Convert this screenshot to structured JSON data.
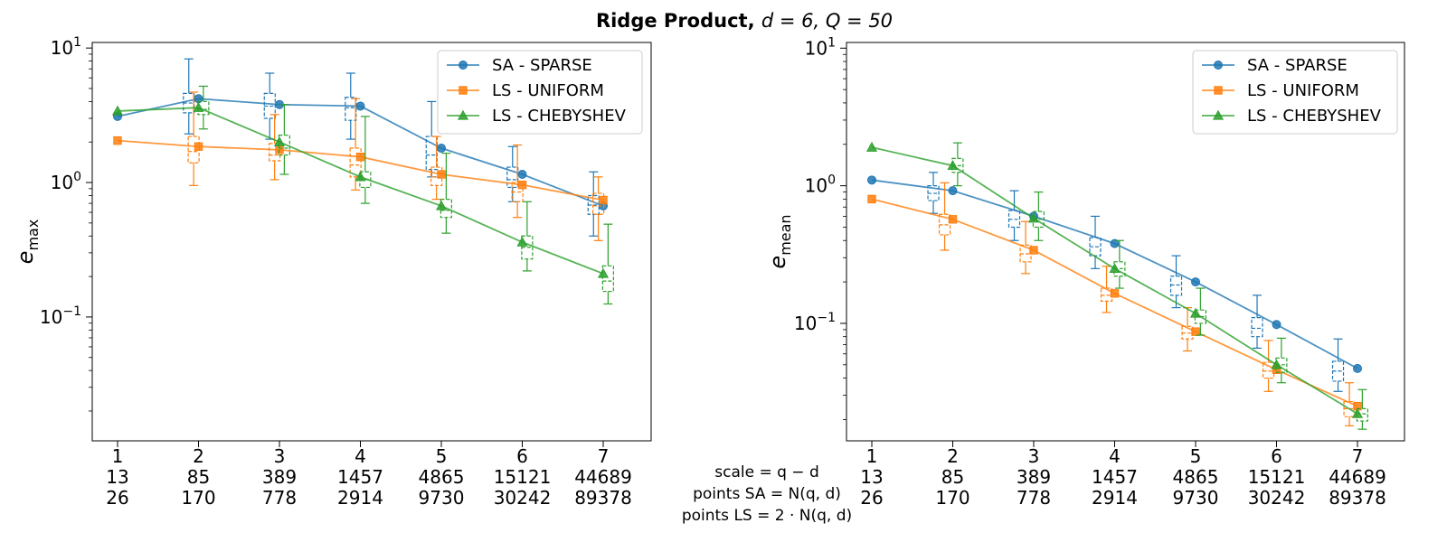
{
  "figure": {
    "title_bold": "Ridge Product, ",
    "title_rest": "d = 6, Q = 50"
  },
  "center_labels": {
    "line1": "scale = q − d",
    "line2": "points SA = N(q, d)",
    "line3": "points LS = 2 · N(q, d)"
  },
  "chart_data": [
    {
      "type": "line",
      "ylabel_main": "e",
      "ylabel_sub": "max",
      "yscale": "log",
      "ylim": [
        0.012,
        11
      ],
      "yticks": [
        {
          "value": 10,
          "base": "10",
          "exp": "1"
        },
        {
          "value": 1,
          "base": "10",
          "exp": "0"
        },
        {
          "value": 0.1,
          "base": "10",
          "exp": "−1"
        }
      ],
      "x": [
        1,
        2,
        3,
        4,
        5,
        6,
        7
      ],
      "xtick_rows": [
        [
          "1",
          "2",
          "3",
          "4",
          "5",
          "6",
          "7"
        ],
        [
          "13",
          "85",
          "389",
          "1457",
          "4865",
          "15121",
          "44689"
        ],
        [
          "26",
          "170",
          "778",
          "2914",
          "9730",
          "30242",
          "89378"
        ]
      ],
      "legend": {
        "position": "upper-right"
      },
      "series": [
        {
          "name": "SA - SPARSE",
          "color": "#1f77b4",
          "marker": "circle",
          "values": [
            3.1,
            4.2,
            3.8,
            3.7,
            1.8,
            1.15,
            0.67
          ],
          "box_offset": -0.12,
          "boxes": [
            null,
            {
              "lo": 2.3,
              "q1": 3.3,
              "med": 3.9,
              "q3": 4.6,
              "hi": 8.3
            },
            {
              "lo": 2.1,
              "q1": 3.0,
              "med": 3.7,
              "q3": 4.6,
              "hi": 6.5
            },
            {
              "lo": 2.1,
              "q1": 2.9,
              "med": 3.6,
              "q3": 4.3,
              "hi": 6.5
            },
            {
              "lo": 1.1,
              "q1": 1.25,
              "med": 1.6,
              "q3": 2.2,
              "hi": 4.0
            },
            {
              "lo": 0.72,
              "q1": 0.92,
              "med": 1.05,
              "q3": 1.3,
              "hi": 1.85
            },
            {
              "lo": 0.4,
              "q1": 0.58,
              "med": 0.68,
              "q3": 0.8,
              "hi": 1.2
            }
          ]
        },
        {
          "name": "LS - UNIFORM",
          "color": "#ff7f0e",
          "marker": "square",
          "values": [
            2.05,
            1.85,
            1.75,
            1.55,
            1.15,
            0.96,
            0.74
          ],
          "box_offset": -0.06,
          "boxes": [
            null,
            {
              "lo": 0.95,
              "q1": 1.4,
              "med": 1.7,
              "q3": 2.2,
              "hi": 4.7
            },
            {
              "lo": 1.05,
              "q1": 1.45,
              "med": 1.6,
              "q3": 1.95,
              "hi": 3.2
            },
            {
              "lo": 0.88,
              "q1": 1.1,
              "med": 1.35,
              "q3": 1.8,
              "hi": 4.2
            },
            {
              "lo": 0.75,
              "q1": 0.95,
              "med": 1.1,
              "q3": 1.3,
              "hi": 2.2
            },
            {
              "lo": 0.55,
              "q1": 0.72,
              "med": 0.85,
              "q3": 1.0,
              "hi": 1.9
            },
            {
              "lo": 0.37,
              "q1": 0.58,
              "med": 0.67,
              "q3": 0.83,
              "hi": 1.1
            }
          ]
        },
        {
          "name": "LS - CHEBYSHEV",
          "color": "#2ca02c",
          "marker": "triangle",
          "values": [
            3.4,
            3.6,
            2.0,
            1.1,
            0.67,
            0.36,
            0.21
          ],
          "box_offset": 0.06,
          "boxes": [
            null,
            {
              "lo": 2.5,
              "q1": 3.2,
              "med": 3.5,
              "q3": 4.0,
              "hi": 5.2
            },
            {
              "lo": 1.15,
              "q1": 1.6,
              "med": 1.8,
              "q3": 2.25,
              "hi": 3.8
            },
            {
              "lo": 0.7,
              "q1": 0.92,
              "med": 1.05,
              "q3": 1.2,
              "hi": 3.1
            },
            {
              "lo": 0.42,
              "q1": 0.55,
              "med": 0.62,
              "q3": 0.75,
              "hi": 1.65
            },
            {
              "lo": 0.22,
              "q1": 0.27,
              "med": 0.33,
              "q3": 0.4,
              "hi": 0.72
            },
            {
              "lo": 0.125,
              "q1": 0.155,
              "med": 0.185,
              "q3": 0.24,
              "hi": 0.49
            }
          ]
        }
      ]
    },
    {
      "type": "line",
      "ylabel_main": "e",
      "ylabel_sub": "mean",
      "yscale": "log",
      "ylim": [
        0.014,
        11
      ],
      "yticks": [
        {
          "value": 10,
          "base": "10",
          "exp": "1"
        },
        {
          "value": 1,
          "base": "10",
          "exp": "0"
        },
        {
          "value": 0.1,
          "base": "10",
          "exp": "−1"
        }
      ],
      "x": [
        1,
        2,
        3,
        4,
        5,
        6,
        7
      ],
      "xtick_rows": [
        [
          "1",
          "2",
          "3",
          "4",
          "5",
          "6",
          "7"
        ],
        [
          "13",
          "85",
          "389",
          "1457",
          "4865",
          "15121",
          "44689"
        ],
        [
          "26",
          "170",
          "778",
          "2914",
          "9730",
          "30242",
          "89378"
        ]
      ],
      "legend": {
        "position": "upper-right"
      },
      "series": [
        {
          "name": "SA - SPARSE",
          "color": "#1f77b4",
          "marker": "circle",
          "values": [
            1.1,
            0.92,
            0.6,
            0.38,
            0.2,
            0.098,
            0.047
          ],
          "box_offset": -0.24,
          "boxes": [
            null,
            {
              "lo": 0.63,
              "q1": 0.78,
              "med": 0.88,
              "q3": 1.0,
              "hi": 1.25
            },
            {
              "lo": 0.4,
              "q1": 0.5,
              "med": 0.57,
              "q3": 0.66,
              "hi": 0.92
            },
            {
              "lo": 0.25,
              "q1": 0.31,
              "med": 0.36,
              "q3": 0.42,
              "hi": 0.6
            },
            {
              "lo": 0.13,
              "q1": 0.16,
              "med": 0.19,
              "q3": 0.22,
              "hi": 0.31
            },
            {
              "lo": 0.066,
              "q1": 0.08,
              "med": 0.092,
              "q3": 0.11,
              "hi": 0.16
            },
            {
              "lo": 0.032,
              "q1": 0.038,
              "med": 0.045,
              "q3": 0.053,
              "hi": 0.077
            }
          ]
        },
        {
          "name": "LS - UNIFORM",
          "color": "#ff7f0e",
          "marker": "square",
          "values": [
            0.8,
            0.57,
            0.34,
            0.165,
            0.087,
            0.046,
            0.025
          ],
          "box_offset": -0.1,
          "boxes": [
            null,
            {
              "lo": 0.34,
              "q1": 0.44,
              "med": 0.52,
              "q3": 0.62,
              "hi": 1.05
            },
            {
              "lo": 0.23,
              "q1": 0.28,
              "med": 0.32,
              "q3": 0.37,
              "hi": 0.55
            },
            {
              "lo": 0.12,
              "q1": 0.145,
              "med": 0.16,
              "q3": 0.18,
              "hi": 0.26
            },
            {
              "lo": 0.063,
              "q1": 0.077,
              "med": 0.085,
              "q3": 0.095,
              "hi": 0.13
            },
            {
              "lo": 0.032,
              "q1": 0.04,
              "med": 0.045,
              "q3": 0.052,
              "hi": 0.075
            },
            {
              "lo": 0.018,
              "q1": 0.021,
              "med": 0.024,
              "q3": 0.027,
              "hi": 0.037
            }
          ]
        },
        {
          "name": "LS - CHEBYSHEV",
          "color": "#2ca02c",
          "marker": "triangle",
          "values": [
            1.9,
            1.4,
            0.58,
            0.25,
            0.118,
            0.05,
            0.022
          ],
          "box_offset": 0.06,
          "boxes": [
            null,
            {
              "lo": 1.0,
              "q1": 1.25,
              "med": 1.4,
              "q3": 1.58,
              "hi": 2.05
            },
            {
              "lo": 0.4,
              "q1": 0.5,
              "med": 0.57,
              "q3": 0.65,
              "hi": 0.9
            },
            {
              "lo": 0.18,
              "q1": 0.22,
              "med": 0.25,
              "q3": 0.28,
              "hi": 0.4
            },
            {
              "lo": 0.082,
              "q1": 0.1,
              "med": 0.112,
              "q3": 0.125,
              "hi": 0.18
            },
            {
              "lo": 0.037,
              "q1": 0.044,
              "med": 0.05,
              "q3": 0.056,
              "hi": 0.078
            },
            {
              "lo": 0.017,
              "q1": 0.0195,
              "med": 0.022,
              "q3": 0.024,
              "hi": 0.033
            }
          ]
        }
      ]
    }
  ]
}
